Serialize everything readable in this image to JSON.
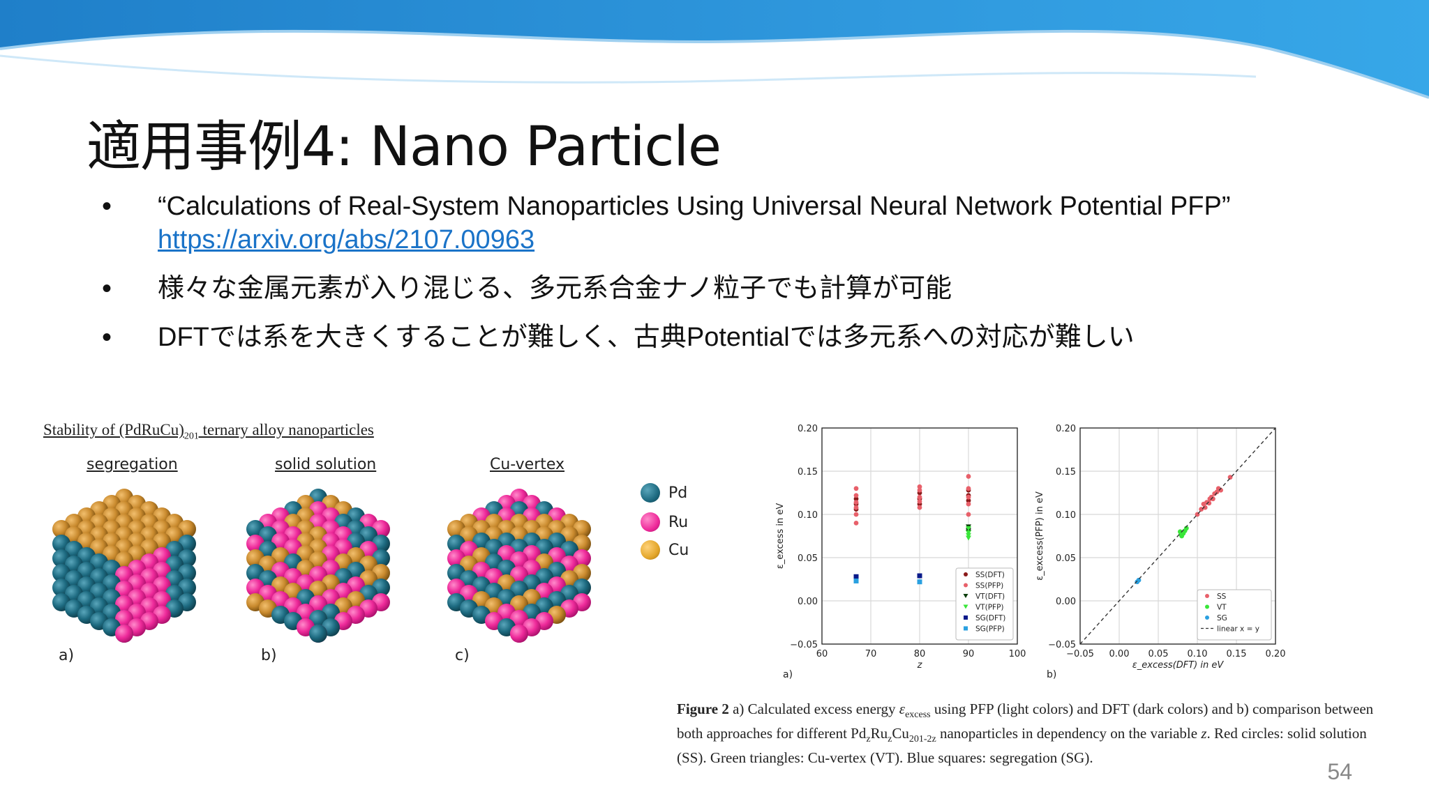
{
  "slide": {
    "title": "適用事例4: Nano Particle",
    "bullets": [
      {
        "text": "“Calculations of Real-System Nanoparticles Using Universal Neural Network Potential PFP”",
        "link": "https://arxiv.org/abs/2107.00963"
      },
      {
        "text": "様々な金属元素が入り混じる、多元系合金ナノ粒子でも計算が可能"
      },
      {
        "text": "DFTでは系を大きくすることが難しく、古典Potentialでは多元系への対応が難しい"
      }
    ],
    "page_number": "54"
  },
  "figure_left": {
    "title": "Stability of (PdRuCu)",
    "title_sub": "201",
    "title_end": " ternary alloy nanoparticles",
    "clusters": [
      {
        "label": "segregation",
        "panel": "a)"
      },
      {
        "label": "solid solution",
        "panel": "b)"
      },
      {
        "label": "Cu-vertex",
        "panel": "c)"
      }
    ],
    "legend": [
      {
        "label": "Pd",
        "color": "#1d6a80"
      },
      {
        "label": "Ru",
        "color": "#ee2a9a"
      },
      {
        "label": "Cu",
        "color": "#e3a62a"
      }
    ]
  },
  "colors": {
    "pd": "#1d6a80",
    "ru": "#ee2a9a",
    "cu": "#c98a2e",
    "link": "#1a73c8"
  },
  "chart_data": [
    {
      "type": "scatter",
      "panel": "a)",
      "xlabel": "z",
      "ylabel": "ε_excess in eV",
      "xlim": [
        60,
        100
      ],
      "ylim": [
        -0.05,
        0.2
      ],
      "xticks": [
        "60",
        "70",
        "80",
        "90",
        "100"
      ],
      "yticks": [
        "−0.05",
        "0.00",
        "0.05",
        "0.10",
        "0.15",
        "0.20"
      ],
      "grid": true,
      "legend_position": "lower-right",
      "series": [
        {
          "name": "SS(DFT)",
          "color": "#8b1a1a",
          "marker": "circle",
          "points": [
            [
              67,
              0.112
            ],
            [
              67,
              0.118
            ],
            [
              67,
              0.106
            ],
            [
              80,
              0.125
            ],
            [
              80,
              0.118
            ],
            [
              80,
              0.112
            ],
            [
              90,
              0.122
            ],
            [
              90,
              0.116
            ],
            [
              90,
              0.128
            ]
          ]
        },
        {
          "name": "SS(PFP)",
          "color": "#e8606a",
          "marker": "circle",
          "points": [
            [
              67,
              0.13
            ],
            [
              67,
              0.122
            ],
            [
              67,
              0.114
            ],
            [
              67,
              0.108
            ],
            [
              67,
              0.1
            ],
            [
              67,
              0.09
            ],
            [
              80,
              0.132
            ],
            [
              80,
              0.128
            ],
            [
              80,
              0.12
            ],
            [
              80,
              0.115
            ],
            [
              80,
              0.108
            ],
            [
              90,
              0.144
            ],
            [
              90,
              0.13
            ],
            [
              90,
              0.12
            ],
            [
              90,
              0.112
            ],
            [
              90,
              0.1
            ]
          ]
        },
        {
          "name": "VT(DFT)",
          "color": "#0b3d0b",
          "marker": "triangle",
          "points": [
            [
              90,
              0.086
            ],
            [
              90,
              0.082
            ],
            [
              90,
              0.08
            ]
          ]
        },
        {
          "name": "VT(PFP)",
          "color": "#39e639",
          "marker": "triangle",
          "points": [
            [
              90,
              0.084
            ],
            [
              90,
              0.079
            ],
            [
              90,
              0.076
            ],
            [
              90,
              0.073
            ]
          ]
        },
        {
          "name": "SG(DFT)",
          "color": "#0a1a8a",
          "marker": "square",
          "points": [
            [
              67,
              0.028
            ],
            [
              80,
              0.029
            ]
          ]
        },
        {
          "name": "SG(PFP)",
          "color": "#2aa0e0",
          "marker": "square",
          "points": [
            [
              67,
              0.023
            ],
            [
              80,
              0.022
            ]
          ]
        }
      ]
    },
    {
      "type": "scatter",
      "panel": "b)",
      "xlabel": "ε_excess(DFT) in eV",
      "ylabel": "ε_excess(PFP) in eV",
      "xlim": [
        -0.05,
        0.2
      ],
      "ylim": [
        -0.05,
        0.2
      ],
      "xticks": [
        "−0.05",
        "0.00",
        "0.05",
        "0.10",
        "0.15",
        "0.20"
      ],
      "yticks": [
        "−0.05",
        "0.00",
        "0.05",
        "0.10",
        "0.15",
        "0.20"
      ],
      "grid": true,
      "legend_position": "lower-right",
      "series": [
        {
          "name": "SS",
          "color": "#e8606a",
          "marker": "circle",
          "points": [
            [
              0.1,
              0.1
            ],
            [
              0.105,
              0.106
            ],
            [
              0.11,
              0.108
            ],
            [
              0.112,
              0.114
            ],
            [
              0.115,
              0.113
            ],
            [
              0.118,
              0.12
            ],
            [
              0.12,
              0.118
            ],
            [
              0.122,
              0.124
            ],
            [
              0.125,
              0.126
            ],
            [
              0.127,
              0.13
            ],
            [
              0.13,
              0.128
            ],
            [
              0.142,
              0.143
            ],
            [
              0.108,
              0.112
            ],
            [
              0.116,
              0.118
            ]
          ]
        },
        {
          "name": "VT",
          "color": "#39e639",
          "marker": "circle",
          "points": [
            [
              0.078,
              0.08
            ],
            [
              0.08,
              0.075
            ],
            [
              0.082,
              0.078
            ],
            [
              0.084,
              0.081
            ],
            [
              0.079,
              0.077
            ],
            [
              0.086,
              0.084
            ]
          ]
        },
        {
          "name": "SG",
          "color": "#2aa0e0",
          "marker": "circle",
          "points": [
            [
              0.023,
              0.022
            ],
            [
              0.025,
              0.024
            ]
          ]
        },
        {
          "name": "linear x = y",
          "color": "#333333",
          "marker": "dashed-line",
          "points": [
            [
              -0.05,
              -0.05
            ],
            [
              0.2,
              0.2
            ]
          ]
        }
      ]
    }
  ],
  "caption": {
    "bold": "Figure 2",
    "text1": " a) Calculated excess energy ",
    "eps": "ε",
    "eps_sub": "excess",
    "text2": " using PFP (light colors) and DFT (dark colors) and b) comparison between both approaches for different Pd",
    "sub1": "z",
    "ru": "Ru",
    "sub2": "z",
    "cu": "Cu",
    "sub3": "201-2z",
    "text3": " nanoparticles in dependency on the variable ",
    "var": "z",
    "text4": ". Red circles: solid solution (SS). Green triangles: Cu-vertex (VT). Blue squares: segregation (SG)."
  }
}
